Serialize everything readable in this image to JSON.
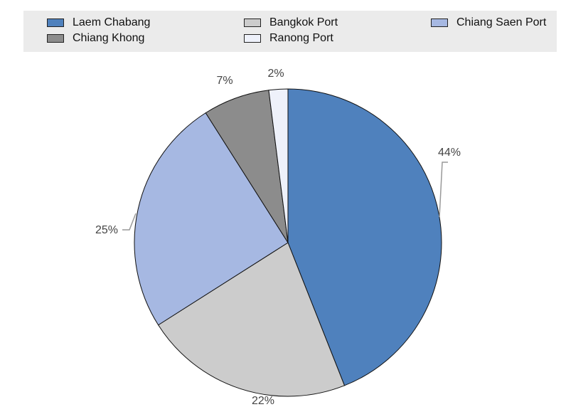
{
  "chart_data": {
    "type": "pie",
    "title": "",
    "legend": "top",
    "slices": [
      {
        "name": "Laem Chabang",
        "value": 44,
        "label": "44%",
        "color": "#4f81bd"
      },
      {
        "name": "Bangkok Port",
        "value": 22,
        "label": "22%",
        "color": "#cccccc"
      },
      {
        "name": "Chiang Saen Port",
        "value": 25,
        "label": "25%",
        "color": "#a6b8e2"
      },
      {
        "name": "Chiang Khong",
        "value": 7,
        "label": "7%",
        "color": "#8c8c8c"
      },
      {
        "name": "Ranong Port",
        "value": 2,
        "label": "2%",
        "color": "#eef1fa"
      }
    ]
  }
}
